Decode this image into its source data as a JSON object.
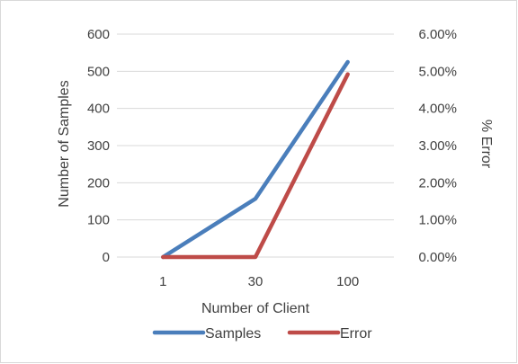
{
  "chart_data": {
    "type": "line",
    "categories": [
      "1",
      "30",
      "100"
    ],
    "xlabel": "Number of Client",
    "ylabel_left": "Number of Samples",
    "ylabel_right": "% Error",
    "y_left": {
      "range": [
        0,
        600
      ],
      "ticks": [
        0,
        100,
        200,
        300,
        400,
        500,
        600
      ],
      "tick_labels": [
        "0",
        "100",
        "200",
        "300",
        "400",
        "500",
        "600"
      ]
    },
    "y_right": {
      "range": [
        0,
        6
      ],
      "ticks": [
        0,
        1,
        2,
        3,
        4,
        5,
        6
      ],
      "tick_labels": [
        "0.00%",
        "1.00%",
        "2.00%",
        "3.00%",
        "4.00%",
        "5.00%",
        "6.00%"
      ]
    },
    "grid": true,
    "legend_position": "bottom",
    "series": [
      {
        "name": "Samples",
        "axis": "left",
        "color": "#4a7ebb",
        "values": [
          0,
          157,
          525
        ]
      },
      {
        "name": "Error",
        "axis": "right",
        "color": "#be4b48",
        "values": [
          0,
          0,
          4.92
        ]
      }
    ]
  }
}
